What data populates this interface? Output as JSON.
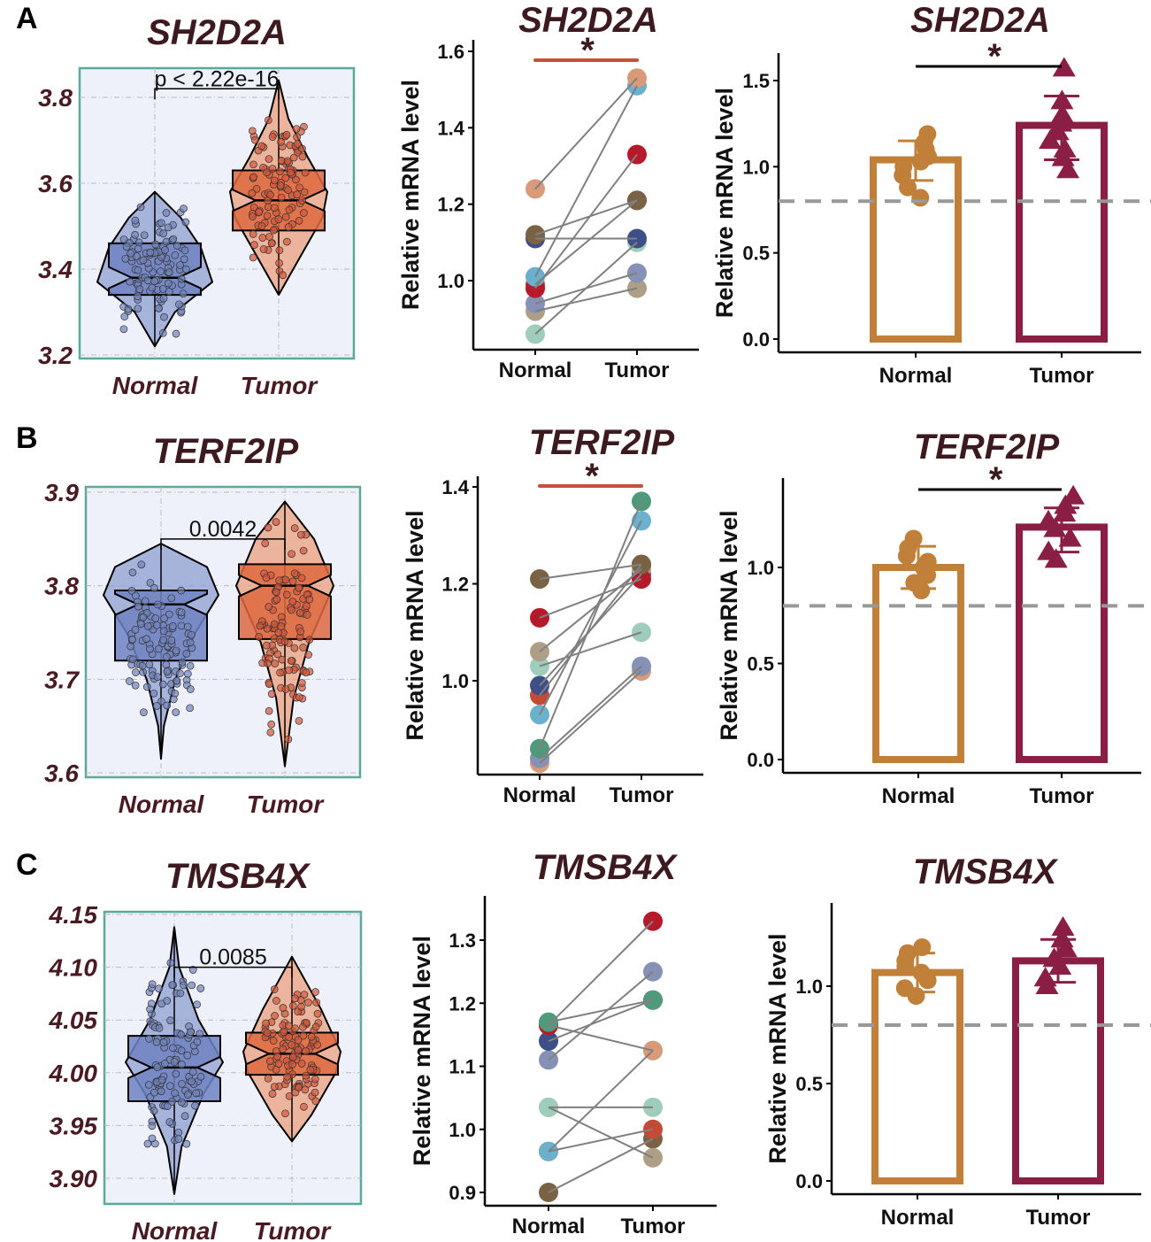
{
  "panels": [
    "A",
    "B",
    "C"
  ],
  "chart_data": [
    {
      "type": "violin",
      "row": "A",
      "title": "SH2D2A",
      "categories": [
        "Normal",
        "Tumor"
      ],
      "yticks": [
        "3.2",
        "3.4",
        "3.6",
        "3.8"
      ],
      "ylim": [
        3.19,
        3.87
      ],
      "groups": [
        {
          "name": "Normal",
          "median": 3.38,
          "q1": 3.34,
          "q3": 3.46,
          "min": 3.22,
          "max": 3.58,
          "density": [
            [
              3.22,
              0
            ],
            [
              3.3,
              0.35
            ],
            [
              3.37,
              1
            ],
            [
              3.45,
              0.8
            ],
            [
              3.52,
              0.45
            ],
            [
              3.58,
              0
            ]
          ]
        },
        {
          "name": "Tumor",
          "median": 3.56,
          "q1": 3.49,
          "q3": 3.63,
          "min": 3.34,
          "max": 3.84,
          "density": [
            [
              3.34,
              0
            ],
            [
              3.42,
              0.4
            ],
            [
              3.52,
              0.9
            ],
            [
              3.58,
              1
            ],
            [
              3.66,
              0.6
            ],
            [
              3.75,
              0.2
            ],
            [
              3.84,
              0
            ]
          ]
        }
      ],
      "comparison": {
        "label": "p < 2.22e-16",
        "y": 3.82
      }
    },
    {
      "type": "paired-dot",
      "row": "A",
      "title": "SH2D2A",
      "ylabel": "Relative mRNA level",
      "categories": [
        "Normal",
        "Tumor"
      ],
      "yticks": [
        "1.0",
        "1.2",
        "1.4",
        "1.6"
      ],
      "significance": "*",
      "pairs": [
        [
          1.24,
          1.53,
          "#d99a7a"
        ],
        [
          1.12,
          1.21,
          "#7a6245"
        ],
        [
          1.11,
          1.11,
          "#3e4e87"
        ],
        [
          1.01,
          1.51,
          "#6bb0cc"
        ],
        [
          0.98,
          1.33,
          "#b5192a"
        ],
        [
          0.99,
          1.21,
          "#c24b35"
        ],
        [
          0.94,
          1.02,
          "#8591b5"
        ],
        [
          0.92,
          0.98,
          "#ad9f86"
        ],
        [
          0.86,
          1.1,
          "#9fcdbb"
        ]
      ]
    },
    {
      "type": "bar",
      "row": "A",
      "title": "SH2D2A",
      "ylabel": "Relative mRNA level",
      "categories": [
        "Normal",
        "Tumor"
      ],
      "yticks": [
        "0.0",
        "0.5",
        "1.0",
        "1.5"
      ],
      "values": [
        1.04,
        1.24
      ],
      "err": [
        [
          0.92,
          1.15
        ],
        [
          1.04,
          1.41
        ]
      ],
      "threshold": 0.8,
      "significance": "*",
      "points": [
        [
          0.82,
          0.88,
          0.95,
          1.0,
          1.03,
          1.06,
          1.1,
          1.14,
          1.19
        ],
        [
          0.98,
          1.05,
          1.1,
          1.15,
          1.2,
          1.25,
          1.3,
          1.38,
          1.57
        ]
      ]
    },
    {
      "type": "violin",
      "row": "B",
      "title": "TERF2IP",
      "categories": [
        "Normal",
        "Tumor"
      ],
      "yticks": [
        "3.6",
        "3.7",
        "3.8",
        "3.9"
      ],
      "ylim": [
        3.595,
        3.905
      ],
      "groups": [
        {
          "name": "Normal",
          "median": 3.78,
          "q1": 3.72,
          "q3": 3.795,
          "min": 3.615,
          "max": 3.845,
          "density": [
            [
              3.615,
              0
            ],
            [
              3.65,
              0.05
            ],
            [
              3.7,
              0.25
            ],
            [
              3.75,
              0.6
            ],
            [
              3.79,
              1
            ],
            [
              3.82,
              0.8
            ],
            [
              3.845,
              0
            ]
          ]
        },
        {
          "name": "Tumor",
          "median": 3.8,
          "q1": 3.743,
          "q3": 3.823,
          "min": 3.607,
          "max": 3.89,
          "density": [
            [
              3.607,
              0
            ],
            [
              3.68,
              0.18
            ],
            [
              3.74,
              0.5
            ],
            [
              3.8,
              1
            ],
            [
              3.85,
              0.6
            ],
            [
              3.89,
              0
            ]
          ]
        }
      ],
      "comparison": {
        "label": "0.0042",
        "y": 3.85
      }
    },
    {
      "type": "paired-dot",
      "row": "B",
      "title": "TERF2IP",
      "ylabel": "Relative mRNA level",
      "categories": [
        "Normal",
        "Tumor"
      ],
      "yticks": [
        "1.0",
        "1.2",
        "1.4"
      ],
      "significance": "*",
      "pairs": [
        [
          1.21,
          1.24,
          "#7a6245"
        ],
        [
          1.13,
          1.21,
          "#b5192a"
        ],
        [
          1.06,
          1.23,
          "#ad9f86"
        ],
        [
          1.03,
          1.1,
          "#9fcdbb"
        ],
        [
          0.99,
          1.22,
          "#3e4e87"
        ],
        [
          0.97,
          1.24,
          "#c24b35"
        ],
        [
          0.93,
          1.33,
          "#6bb0cc"
        ],
        [
          0.86,
          1.37,
          "#4e9a7a"
        ],
        [
          0.84,
          1.03,
          "#8591b5"
        ],
        [
          0.83,
          1.02,
          "#d99a7a"
        ]
      ]
    },
    {
      "type": "bar",
      "row": "B",
      "title": "TERF2IP",
      "ylabel": "Relative mRNA level",
      "categories": [
        "Normal",
        "Tumor"
      ],
      "yticks": [
        "0.0",
        "0.5",
        "1.0"
      ],
      "values": [
        1.0,
        1.21
      ],
      "err": [
        [
          0.89,
          1.11
        ],
        [
          1.08,
          1.31
        ]
      ],
      "threshold": 0.8,
      "significance": "*",
      "points": [
        [
          0.88,
          0.92,
          0.96,
          1.0,
          1.03,
          1.06,
          1.1,
          1.15
        ],
        [
          1.04,
          1.08,
          1.15,
          1.2,
          1.24,
          1.28,
          1.32,
          1.37
        ]
      ]
    },
    {
      "type": "violin",
      "row": "C",
      "title": "TMSB4X",
      "categories": [
        "Normal",
        "Tumor"
      ],
      "yticks": [
        "3.90",
        "3.95",
        "4.00",
        "4.05",
        "4.10",
        "4.15"
      ],
      "ylim": [
        3.877,
        4.152
      ],
      "groups": [
        {
          "name": "Normal",
          "median": 4.005,
          "q1": 3.973,
          "q3": 4.035,
          "min": 3.885,
          "max": 4.138,
          "density": [
            [
              3.885,
              0
            ],
            [
              3.93,
              0.15
            ],
            [
              3.98,
              0.6
            ],
            [
              4.01,
              1
            ],
            [
              4.05,
              0.5
            ],
            [
              4.1,
              0.1
            ],
            [
              4.138,
              0
            ]
          ]
        },
        {
          "name": "Tumor",
          "median": 4.018,
          "q1": 3.998,
          "q3": 4.038,
          "min": 3.935,
          "max": 4.11,
          "density": [
            [
              3.935,
              0
            ],
            [
              3.96,
              0.4
            ],
            [
              4.0,
              0.9
            ],
            [
              4.02,
              1
            ],
            [
              4.06,
              0.6
            ],
            [
              4.11,
              0
            ]
          ]
        }
      ],
      "comparison": {
        "label": "0.0085",
        "y": 4.1
      }
    },
    {
      "type": "paired-dot",
      "row": "C",
      "title": "TMSB4X",
      "ylabel": "Relative mRNA level",
      "categories": [
        "Normal",
        "Tumor"
      ],
      "yticks": [
        "0.9",
        "1.0",
        "1.1",
        "1.2",
        "1.3"
      ],
      "significance": null,
      "pairs": [
        [
          1.17,
          1.205,
          "#4e9a7a"
        ],
        [
          1.165,
          1.33,
          "#b5192a"
        ],
        [
          1.165,
          1.125,
          "#d99a7a"
        ],
        [
          1.14,
          1.205,
          "#3e4e87"
        ],
        [
          1.11,
          1.25,
          "#8591b5"
        ],
        [
          1.035,
          1.035,
          "#9fcdbb"
        ],
        [
          1.035,
          0.955,
          "#ad9f86"
        ],
        [
          0.965,
          1.125,
          "#6bb0cc"
        ],
        [
          0.965,
          1.0,
          "#c24b35"
        ],
        [
          0.9,
          0.985,
          "#7a6245"
        ]
      ]
    },
    {
      "type": "bar",
      "row": "C",
      "title": "TMSB4X",
      "ylabel": "Relative mRNA level",
      "categories": [
        "Normal",
        "Tumor"
      ],
      "yticks": [
        "0.0",
        "0.5",
        "1.0"
      ],
      "values": [
        1.07,
        1.13
      ],
      "err": [
        [
          0.97,
          1.17
        ],
        [
          1.02,
          1.24
        ]
      ],
      "threshold": 0.8,
      "significance": null,
      "points": [
        [
          0.95,
          0.99,
          1.03,
          1.07,
          1.1,
          1.13,
          1.17,
          1.2
        ],
        [
          1.0,
          1.04,
          1.1,
          1.14,
          1.19,
          1.24,
          1.3
        ]
      ]
    }
  ]
}
